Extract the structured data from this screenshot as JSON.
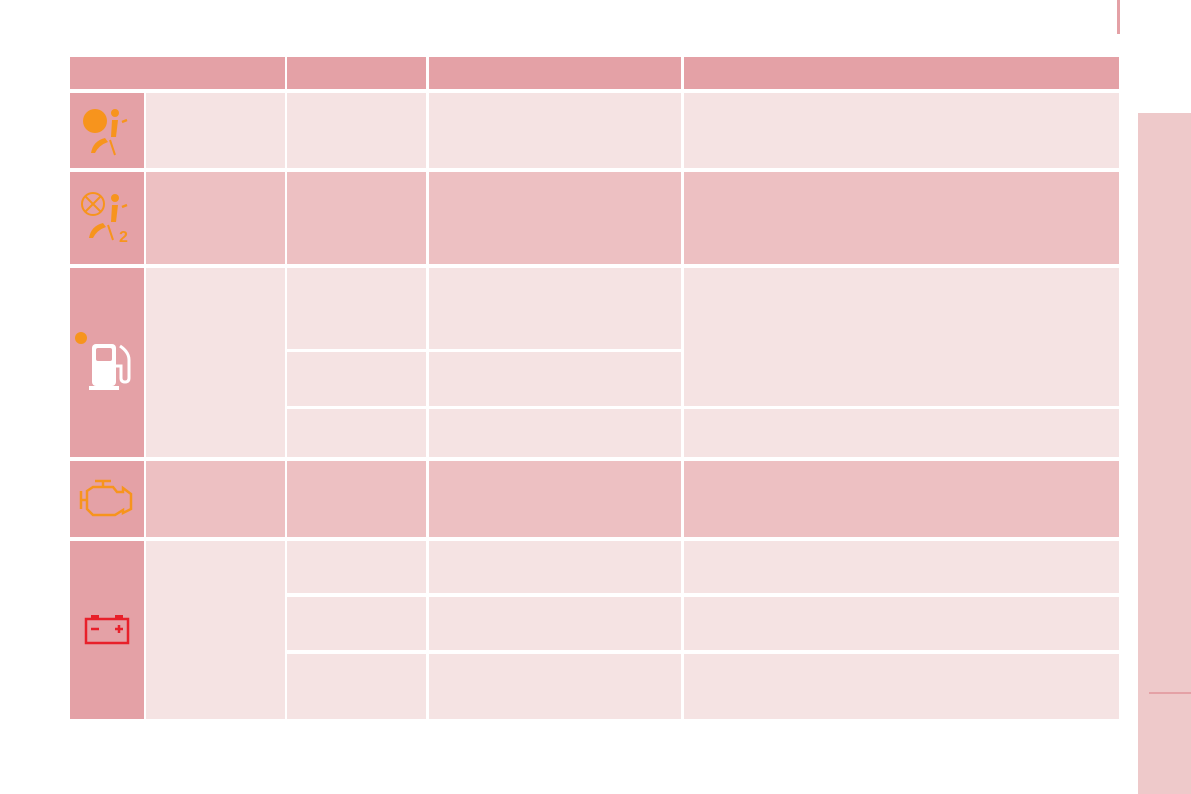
{
  "colors": {
    "header": "#e4a1a6",
    "icon_cell": "#e4a1a6",
    "row_medium": "#edc0c2",
    "row_light": "#f5e3e3",
    "icon_orange": "#f7941d",
    "icon_red": "#e8202a",
    "side_tab": "#eec9ca"
  },
  "table": {
    "rows": [
      {
        "icon": "airbag-warning-icon"
      },
      {
        "icon": "passenger-airbag-off-icon",
        "icon_text": "2"
      },
      {
        "icon": "low-fuel-icon"
      },
      {
        "icon": "engine-check-icon"
      },
      {
        "icon": "battery-charge-icon"
      }
    ]
  }
}
